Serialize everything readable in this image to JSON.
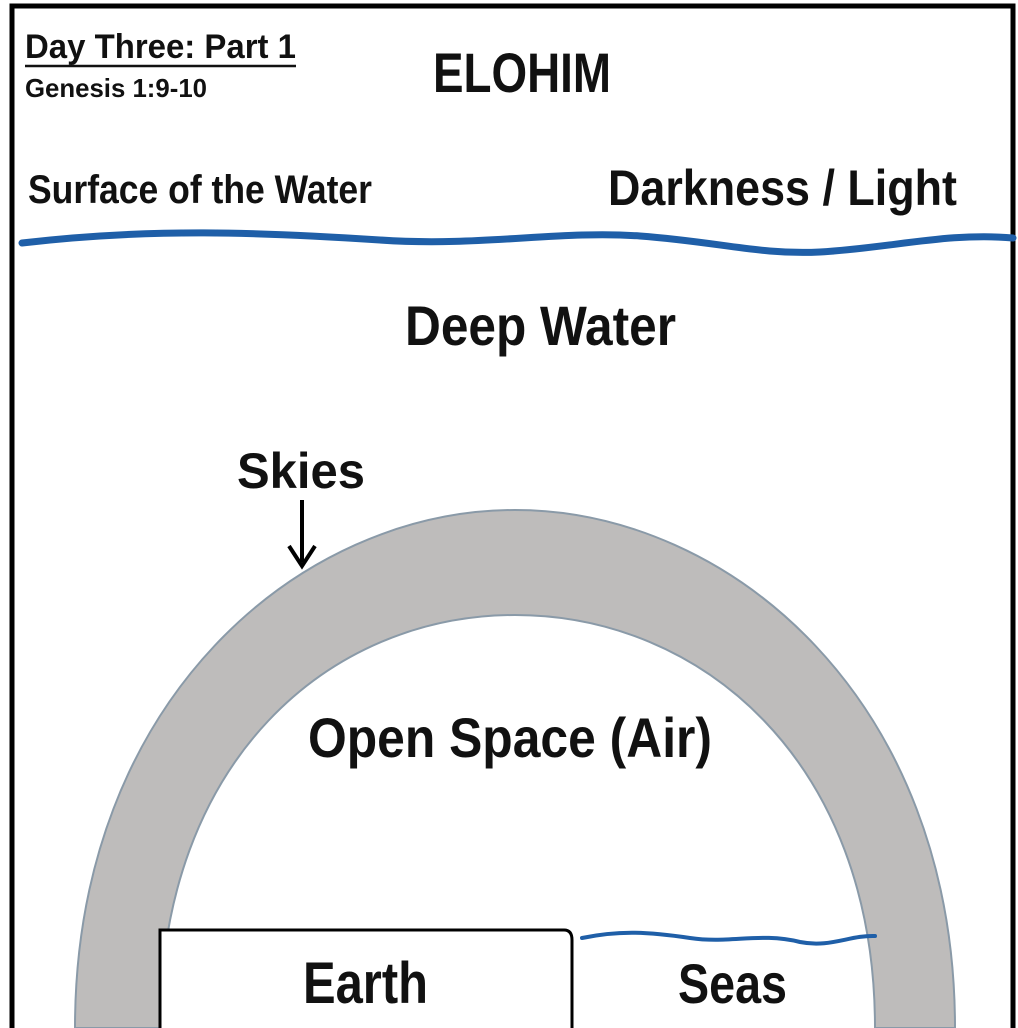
{
  "header": {
    "title": "Day Three: Part 1",
    "reference": "Genesis 1:9-10",
    "name": "ELOHIM"
  },
  "labels": {
    "surface": "Surface of the Water",
    "darkness_light": "Darkness / Light",
    "deep_water": "Deep Water",
    "skies": "Skies",
    "open_space": "Open Space (Air)",
    "earth": "Earth",
    "seas": "Seas"
  }
}
